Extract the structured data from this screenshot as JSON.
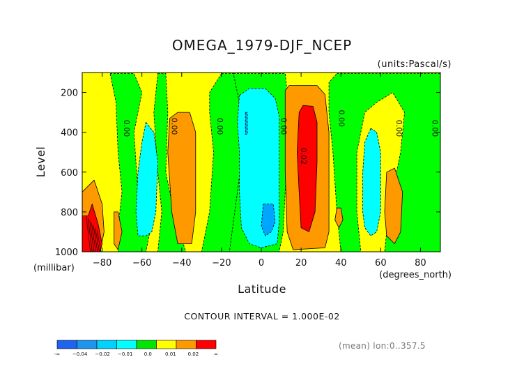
{
  "chart_data": {
    "type": "heatmap",
    "title": "OMEGA_1979-DJF_NCEP",
    "units_label": "(units:Pascal/s)",
    "xlabel": "Latitude",
    "xunits_label": "(degrees_north)",
    "ylabel": "Level",
    "yunits_label": "(millibar)",
    "xlim": [
      -90,
      90
    ],
    "ylim": [
      1000,
      100
    ],
    "x_ticks": [
      -80,
      -60,
      -40,
      -20,
      0,
      20,
      40,
      60,
      80
    ],
    "y_ticks": [
      200,
      400,
      600,
      800,
      1000
    ],
    "grid": false,
    "contour_interval_text": "CONTOUR INTERVAL = 1.000E-02",
    "info_text": "(mean) lon:0..357.5",
    "colorbar": {
      "ticks": [
        "-∞",
        "−0.04",
        "−0.02",
        "−0.01",
        "0.0",
        "0.01",
        "0.02",
        "∞"
      ],
      "colors": [
        "#1e64f0",
        "#1e96f0",
        "#00d2ff",
        "#00ffff",
        "#00ff00",
        "#ffff00",
        "#ff9900",
        "#ff0000"
      ]
    },
    "contour_labels": [
      {
        "lat": -69,
        "lev": 380,
        "text": "0.00"
      },
      {
        "lat": -45,
        "lev": 370,
        "text": "0.00"
      },
      {
        "lat": -22,
        "lev": 370,
        "text": "0.00"
      },
      {
        "lat": 10,
        "lev": 370,
        "text": "0.00"
      },
      {
        "lat": 20,
        "lev": 520,
        "text": "0.02"
      },
      {
        "lat": 39,
        "lev": 330,
        "text": "0.00"
      },
      {
        "lat": 68,
        "lev": 380,
        "text": "0.00"
      },
      {
        "lat": 86,
        "lev": 380,
        "text": "0.00"
      }
    ],
    "regions": [
      {
        "value_class": "-0.01..0.0",
        "description": "green bands",
        "polygons": [
          [
            [
              -76,
              105
            ],
            [
              -64,
              105
            ],
            [
              -60,
              200
            ],
            [
              -64,
              400
            ],
            [
              -62,
              700
            ],
            [
              -56,
              900
            ],
            [
              -58,
              1000
            ],
            [
              -72,
              1000
            ],
            [
              -72,
              880
            ],
            [
              -70,
              700
            ],
            [
              -72,
              500
            ],
            [
              -73,
              250
            ]
          ],
          [
            [
              -52,
              105
            ],
            [
              -48,
              105
            ],
            [
              -47,
              300
            ],
            [
              -48,
              600
            ],
            [
              -44,
              800
            ],
            [
              -38,
              1000
            ],
            [
              -52,
              1000
            ],
            [
              -50,
              800
            ],
            [
              -52,
              600
            ],
            [
              -54,
              300
            ]
          ],
          [
            [
              -20,
              105
            ],
            [
              -14,
              105
            ],
            [
              -8,
              400
            ],
            [
              -12,
              700
            ],
            [
              -16,
              1000
            ],
            [
              -30,
              1000
            ],
            [
              -26,
              800
            ],
            [
              -24,
              500
            ],
            [
              -26,
              300
            ],
            [
              -26,
              200
            ]
          ],
          [
            [
              -14,
              105
            ],
            [
              12,
              105
            ],
            [
              14,
              300
            ],
            [
              11,
              900
            ],
            [
              9,
              1000
            ],
            [
              -16,
              1000
            ],
            [
              -12,
              700
            ],
            [
              -8,
              400
            ]
          ],
          [
            [
              38,
              105
            ],
            [
              90,
              105
            ],
            [
              90,
              1000
            ],
            [
              62,
              1000
            ],
            [
              64,
              800
            ],
            [
              70,
              500
            ],
            [
              72,
              300
            ],
            [
              66,
              200
            ],
            [
              58,
              250
            ],
            [
              52,
              300
            ],
            [
              48,
              500
            ],
            [
              48,
              800
            ],
            [
              50,
              1000
            ],
            [
              40,
              1000
            ],
            [
              38,
              800
            ],
            [
              36,
              500
            ],
            [
              34,
              300
            ],
            [
              34,
              150
            ]
          ]
        ]
      },
      {
        "value_class": "-0.02..-0.01",
        "description": "cyan cells",
        "polygons": [
          [
            [
              -58,
              350
            ],
            [
              -54,
              400
            ],
            [
              -52,
              550
            ],
            [
              -53,
              800
            ],
            [
              -55,
              900
            ],
            [
              -58,
              920
            ],
            [
              -62,
              920
            ],
            [
              -63,
              800
            ],
            [
              -62,
              600
            ],
            [
              -60,
              450
            ]
          ],
          [
            [
              -11,
              215
            ],
            [
              -6,
              180
            ],
            [
              2,
              180
            ],
            [
              7,
              230
            ],
            [
              9,
              320
            ],
            [
              9,
              600
            ],
            [
              9,
              850
            ],
            [
              8,
              960
            ],
            [
              0,
              980
            ],
            [
              -6,
              960
            ],
            [
              -10,
              880
            ],
            [
              -11,
              700
            ],
            [
              -11,
              500
            ],
            [
              -12,
              350
            ]
          ],
          [
            [
              55,
              380
            ],
            [
              58,
              400
            ],
            [
              60,
              500
            ],
            [
              60,
              800
            ],
            [
              58,
              900
            ],
            [
              55,
              920
            ],
            [
              52,
              880
            ],
            [
              51,
              800
            ],
            [
              51,
              600
            ],
            [
              52,
              450
            ]
          ]
        ]
      },
      {
        "value_class": "-0.04..-0.02",
        "description": "blue cells",
        "polygons": [
          [
            [
              1,
              760
            ],
            [
              6,
              760
            ],
            [
              7,
              850
            ],
            [
              5,
              900
            ],
            [
              2,
              920
            ],
            [
              0,
              870
            ]
          ],
          [
            [
              -8,
              300
            ],
            [
              -7,
              300
            ],
            [
              -7,
              410
            ],
            [
              -8,
              410
            ]
          ]
        ]
      },
      {
        "value_class": "0.01..0.02",
        "description": "orange cells",
        "polygons": [
          [
            [
              12,
              190
            ],
            [
              14,
              165
            ],
            [
              28,
              165
            ],
            [
              32,
              210
            ],
            [
              34,
              400
            ],
            [
              34,
              900
            ],
            [
              32,
              980
            ],
            [
              16,
              990
            ],
            [
              13,
              900
            ],
            [
              12,
              600
            ]
          ],
          [
            [
              -46,
              330
            ],
            [
              -42,
              300
            ],
            [
              -36,
              300
            ],
            [
              -33,
              400
            ],
            [
              -33,
              800
            ],
            [
              -35,
              960
            ],
            [
              -42,
              960
            ],
            [
              -45,
              800
            ],
            [
              -47,
              500
            ]
          ],
          [
            [
              -90,
              700
            ],
            [
              -84,
              640
            ],
            [
              -80,
              760
            ],
            [
              -79,
              900
            ],
            [
              -81,
              1000
            ],
            [
              -90,
              1000
            ]
          ],
          [
            [
              -74,
              800
            ],
            [
              -72,
              800
            ],
            [
              -70,
              900
            ],
            [
              -72,
              990
            ],
            [
              -74,
              960
            ]
          ],
          [
            [
              63,
              600
            ],
            [
              67,
              580
            ],
            [
              71,
              700
            ],
            [
              70,
              900
            ],
            [
              67,
              960
            ],
            [
              63,
              920
            ],
            [
              62,
              800
            ]
          ],
          [
            [
              38,
              780
            ],
            [
              40,
              780
            ],
            [
              41,
              840
            ],
            [
              39,
              880
            ],
            [
              37,
              840
            ]
          ]
        ]
      },
      {
        "value_class": ">0.02",
        "description": "red cells",
        "polygons": [
          [
            [
              19,
              300
            ],
            [
              21,
              265
            ],
            [
              26,
              270
            ],
            [
              28,
              350
            ],
            [
              28,
              550
            ],
            [
              27,
              800
            ],
            [
              24,
              900
            ],
            [
              20,
              880
            ],
            [
              19,
              700
            ],
            [
              18,
              500
            ]
          ],
          [
            [
              -90,
              820
            ],
            [
              -87,
              820
            ],
            [
              -85,
              760
            ],
            [
              -82,
              860
            ],
            [
              -80,
              960
            ],
            [
              -81,
              1000
            ],
            [
              -90,
              1000
            ]
          ]
        ]
      },
      {
        "value_class": "0.0..0.01",
        "description": "yellow background",
        "polygons": []
      }
    ]
  }
}
